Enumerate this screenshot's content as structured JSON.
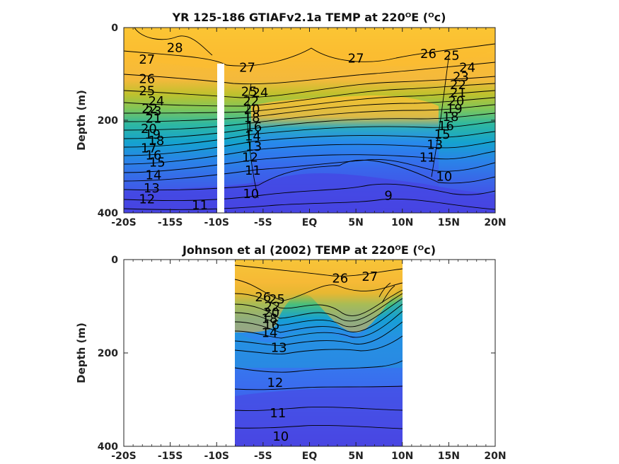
{
  "chart_data": [
    {
      "type": "heatmap",
      "title": "YR 125-186 GTIAFv2.1a TEMP at 220ᴼE (ᴼc)",
      "ylabel": "Depth (m)",
      "xlim": [
        -20,
        20
      ],
      "ylim": [
        400,
        0
      ],
      "x_ticks": [
        -20,
        -15,
        -10,
        -5,
        0,
        5,
        10,
        15,
        20
      ],
      "x_tick_labels": [
        "-20S",
        "-15S",
        "-10S",
        "-5S",
        "EQ",
        "5N",
        "10N",
        "15N",
        "20N"
      ],
      "y_ticks": [
        0,
        200,
        400
      ],
      "y_tick_labels": [
        "0",
        "200",
        "400"
      ],
      "data_range": [
        -20,
        20
      ],
      "masked_band": [
        -10.4,
        -9.6
      ],
      "masked_band_depth": [
        78,
        400
      ],
      "contour_levels": [
        9,
        10,
        11,
        12,
        13,
        14,
        15,
        16,
        17,
        18,
        19,
        20,
        21,
        22,
        23,
        24,
        25,
        26,
        27,
        28
      ],
      "contour_labels": [
        {
          "text": "28",
          "x": -14.5,
          "y": 45
        },
        {
          "text": "27",
          "x": -17.5,
          "y": 70
        },
        {
          "text": "26",
          "x": -17.5,
          "y": 112
        },
        {
          "text": "25",
          "x": -17.5,
          "y": 138
        },
        {
          "text": "24",
          "x": -16.5,
          "y": 160
        },
        {
          "text": "23",
          "x": -16.8,
          "y": 182
        },
        {
          "text": "22",
          "x": -17.2,
          "y": 176
        },
        {
          "text": "21",
          "x": -16.8,
          "y": 198
        },
        {
          "text": "20",
          "x": -17.3,
          "y": 220
        },
        {
          "text": "19",
          "x": -16.9,
          "y": 232
        },
        {
          "text": "18",
          "x": -16.5,
          "y": 246
        },
        {
          "text": "17",
          "x": -17.3,
          "y": 262
        },
        {
          "text": "16",
          "x": -16.8,
          "y": 277
        },
        {
          "text": "15",
          "x": -16.4,
          "y": 292
        },
        {
          "text": "14",
          "x": -16.8,
          "y": 320
        },
        {
          "text": "13",
          "x": -17.0,
          "y": 348
        },
        {
          "text": "12",
          "x": -17.5,
          "y": 372
        },
        {
          "text": "11",
          "x": -11.8,
          "y": 385
        },
        {
          "text": "27",
          "x": -6.7,
          "y": 88
        },
        {
          "text": "25",
          "x": -6.5,
          "y": 140
        },
        {
          "text": "24",
          "x": -5.3,
          "y": 142
        },
        {
          "text": "22",
          "x": -6.3,
          "y": 160
        },
        {
          "text": "20",
          "x": -6.2,
          "y": 178
        },
        {
          "text": "18",
          "x": -6.2,
          "y": 196
        },
        {
          "text": "16",
          "x": -6.0,
          "y": 216
        },
        {
          "text": "14",
          "x": -6.1,
          "y": 236
        },
        {
          "text": "13",
          "x": -6.0,
          "y": 258
        },
        {
          "text": "12",
          "x": -6.4,
          "y": 282
        },
        {
          "text": "11",
          "x": -6.1,
          "y": 310
        },
        {
          "text": "10",
          "x": -6.3,
          "y": 360
        },
        {
          "text": "27",
          "x": 5.0,
          "y": 68
        },
        {
          "text": "26",
          "x": 12.8,
          "y": 58
        },
        {
          "text": "25",
          "x": 15.3,
          "y": 62
        },
        {
          "text": "24",
          "x": 17.0,
          "y": 88
        },
        {
          "text": "23",
          "x": 16.3,
          "y": 108
        },
        {
          "text": "22",
          "x": 16.0,
          "y": 125
        },
        {
          "text": "21",
          "x": 16.0,
          "y": 142
        },
        {
          "text": "20",
          "x": 15.8,
          "y": 160
        },
        {
          "text": "19",
          "x": 15.6,
          "y": 177
        },
        {
          "text": "18",
          "x": 15.2,
          "y": 194
        },
        {
          "text": "16",
          "x": 14.7,
          "y": 214
        },
        {
          "text": "15",
          "x": 14.3,
          "y": 232
        },
        {
          "text": "13",
          "x": 13.5,
          "y": 254
        },
        {
          "text": "11",
          "x": 12.7,
          "y": 282
        },
        {
          "text": "10",
          "x": 14.5,
          "y": 323
        },
        {
          "text": "9",
          "x": 8.5,
          "y": 364
        }
      ]
    },
    {
      "type": "heatmap",
      "title": "Johnson et al (2002) TEMP at 220ᴼE (ᴼc)",
      "ylabel": "Depth (m)",
      "xlim": [
        -20,
        20
      ],
      "ylim": [
        400,
        0
      ],
      "x_ticks": [
        -20,
        -15,
        -10,
        -5,
        0,
        5,
        10,
        15,
        20
      ],
      "x_tick_labels": [
        "-20S",
        "-15S",
        "-10S",
        "-5S",
        "EQ",
        "5N",
        "10N",
        "15N",
        "20N"
      ],
      "y_ticks": [
        0,
        200,
        400
      ],
      "y_tick_labels": [
        "0",
        "200",
        "400"
      ],
      "data_range": [
        -8,
        10
      ],
      "contour_levels": [
        10,
        11,
        12,
        13,
        14,
        15,
        16,
        17,
        18,
        19,
        20,
        21,
        22,
        23,
        24,
        25,
        26,
        27
      ],
      "contour_labels": [
        {
          "text": "27",
          "x": 6.5,
          "y": 38
        },
        {
          "text": "26",
          "x": 3.3,
          "y": 42
        },
        {
          "text": "26",
          "x": -5.0,
          "y": 82
        },
        {
          "text": "25",
          "x": -3.5,
          "y": 86
        },
        {
          "text": "22",
          "x": -4.0,
          "y": 102
        },
        {
          "text": "20",
          "x": -4.1,
          "y": 115
        },
        {
          "text": "18",
          "x": -4.3,
          "y": 128
        },
        {
          "text": "16",
          "x": -4.1,
          "y": 142
        },
        {
          "text": "14",
          "x": -4.3,
          "y": 158
        },
        {
          "text": "13",
          "x": -3.3,
          "y": 190
        },
        {
          "text": "12",
          "x": -3.7,
          "y": 265
        },
        {
          "text": "11",
          "x": -3.4,
          "y": 330
        },
        {
          "text": "10",
          "x": -3.1,
          "y": 380
        }
      ]
    }
  ]
}
